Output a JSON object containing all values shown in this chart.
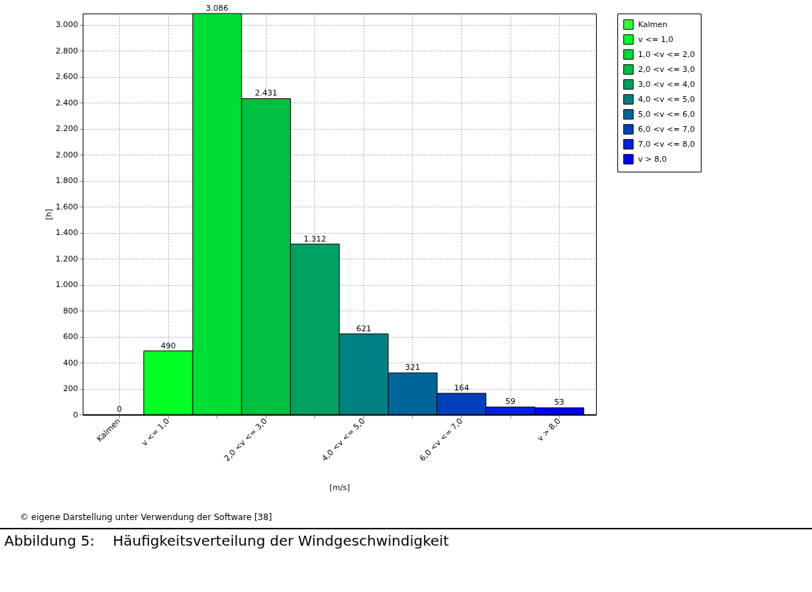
{
  "chart_data": {
    "type": "bar",
    "xlabel": "[m/s]",
    "ylabel": "[h]",
    "categories": [
      "Kalmen",
      "v <= 1,0",
      null,
      "2,0 <v <= 3,0",
      null,
      "4,0 <v <= 5,0",
      null,
      "6,0 <v <= 7,0",
      null,
      "v > 8,0"
    ],
    "series": [
      {
        "name": "Kalmen",
        "color": "#33ff33",
        "values": [
          0,
          null,
          null,
          null,
          null,
          null,
          null,
          null,
          null,
          null
        ],
        "value_labels": [
          "0",
          null,
          null,
          null,
          null,
          null,
          null,
          null,
          null,
          null
        ]
      },
      {
        "name": "v <= 1,0",
        "color": "#00ff22",
        "values": [
          null,
          490,
          null,
          null,
          null,
          null,
          null,
          null,
          null,
          null
        ],
        "value_labels": [
          null,
          "490",
          null,
          null,
          null,
          null,
          null,
          null,
          null,
          null
        ]
      },
      {
        "name": "1,0 <v <= 2,0",
        "color": "#00dd33",
        "values": [
          null,
          null,
          3086,
          null,
          null,
          null,
          null,
          null,
          null,
          null
        ],
        "value_labels": [
          null,
          null,
          "3.086",
          null,
          null,
          null,
          null,
          null,
          null,
          null
        ]
      },
      {
        "name": "2,0 <v <= 3,0",
        "color": "#00c040",
        "values": [
          null,
          null,
          null,
          2431,
          null,
          null,
          null,
          null,
          null,
          null
        ],
        "value_labels": [
          null,
          null,
          null,
          "2.431",
          null,
          null,
          null,
          null,
          null,
          null
        ]
      },
      {
        "name": "3,0 <v <= 4,0",
        "color": "#00a060",
        "values": [
          null,
          null,
          null,
          null,
          1312,
          null,
          null,
          null,
          null,
          null
        ],
        "value_labels": [
          null,
          null,
          null,
          null,
          "1.312",
          null,
          null,
          null,
          null,
          null
        ]
      },
      {
        "name": "4,0 <v <= 5,0",
        "color": "#008080",
        "values": [
          null,
          null,
          null,
          null,
          null,
          621,
          null,
          null,
          null,
          null
        ],
        "value_labels": [
          null,
          null,
          null,
          null,
          null,
          "621",
          null,
          null,
          null,
          null
        ]
      },
      {
        "name": "5,0 <v <= 6,0",
        "color": "#006699",
        "values": [
          null,
          null,
          null,
          null,
          null,
          null,
          321,
          null,
          null,
          null
        ],
        "value_labels": [
          null,
          null,
          null,
          null,
          null,
          null,
          "321",
          null,
          null,
          null
        ]
      },
      {
        "name": "6,0 <v <= 7,0",
        "color": "#0040bb",
        "values": [
          null,
          null,
          null,
          null,
          null,
          null,
          null,
          164,
          null,
          null
        ],
        "value_labels": [
          null,
          null,
          null,
          null,
          null,
          null,
          null,
          "164",
          null,
          null
        ]
      },
      {
        "name": "7,0 <v <= 8,0",
        "color": "#0022dd",
        "values": [
          null,
          null,
          null,
          null,
          null,
          null,
          null,
          null,
          59,
          null
        ],
        "value_labels": [
          null,
          null,
          null,
          null,
          null,
          null,
          null,
          null,
          "59",
          null
        ]
      },
      {
        "name": "v > 8,0",
        "color": "#0000ff",
        "values": [
          null,
          null,
          null,
          null,
          null,
          null,
          null,
          null,
          null,
          53
        ],
        "value_labels": [
          null,
          null,
          null,
          null,
          null,
          null,
          null,
          null,
          null,
          "53"
        ]
      }
    ],
    "ylim": [
      0,
      3086
    ],
    "yticks": [
      {
        "value": 0,
        "label": "0"
      },
      {
        "value": 200,
        "label": "200"
      },
      {
        "value": 400,
        "label": "400"
      },
      {
        "value": 600,
        "label": "600"
      },
      {
        "value": 800,
        "label": "800"
      },
      {
        "value": 1000,
        "label": "1.000"
      },
      {
        "value": 1200,
        "label": "1.200"
      },
      {
        "value": 1400,
        "label": "1.400"
      },
      {
        "value": 1600,
        "label": "1.600"
      },
      {
        "value": 1800,
        "label": "1.800"
      },
      {
        "value": 2000,
        "label": "2.000"
      },
      {
        "value": 2200,
        "label": "2.200"
      },
      {
        "value": 2400,
        "label": "2.400"
      },
      {
        "value": 2600,
        "label": "2.600"
      },
      {
        "value": 2800,
        "label": "2.800"
      },
      {
        "value": 3000,
        "label": "3.000"
      }
    ],
    "grid": true,
    "legend": "top right",
    "annotations": [
      "© eigene Darstellung unter Verwendung der Software [38]"
    ],
    "title": "Abbildung 5:    Häufigkeitsverteilung der Windgeschwindigkeit"
  }
}
